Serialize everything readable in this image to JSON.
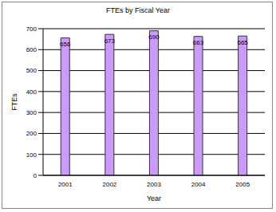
{
  "chart_data": {
    "type": "bar",
    "title": "FTEs by Fiscal Year",
    "x_label": "Year",
    "y_label": "FTEs",
    "categories": [
      "2001",
      "2002",
      "2003",
      "2004",
      "2005"
    ],
    "values": [
      656,
      673,
      690,
      663,
      665
    ],
    "color": "#cc99ff",
    "ylim": [
      0,
      700
    ],
    "yticks": [
      0,
      100,
      200,
      300,
      400,
      500,
      600,
      700
    ],
    "grid": true,
    "data_labels": true
  }
}
